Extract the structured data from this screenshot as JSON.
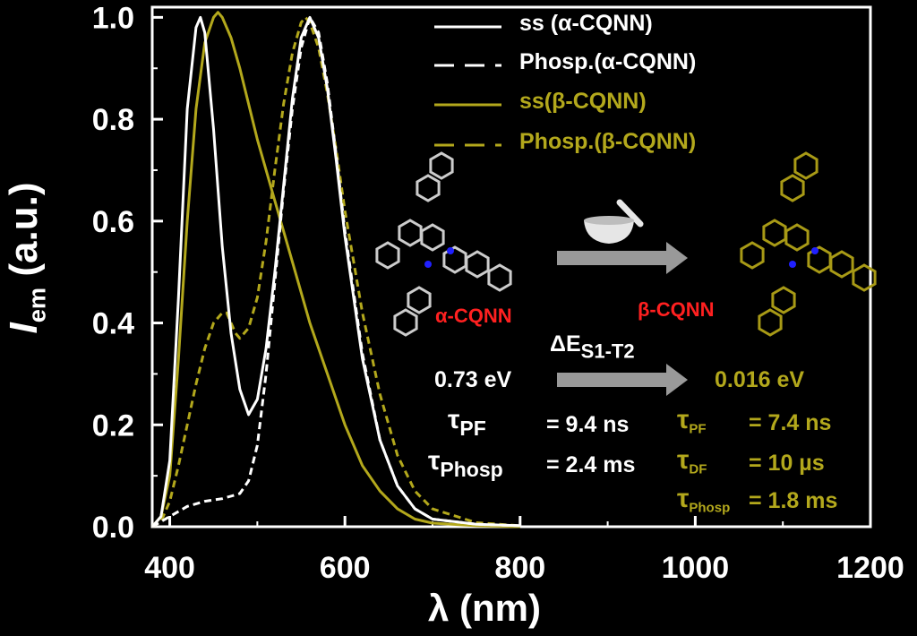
{
  "chart_data": {
    "type": "line",
    "xlabel": "λ (nm)",
    "ylabel": {
      "italic": "I",
      "sub": "em",
      "rest": " (a.u.)"
    },
    "xlim": [
      380,
      1200
    ],
    "ylim": [
      0,
      1.02
    ],
    "xticks": [
      400,
      600,
      800,
      1000,
      1200
    ],
    "yticks": [
      0.0,
      0.2,
      0.4,
      0.6,
      0.8,
      1.0
    ],
    "xtick_labels": [
      "400",
      "600",
      "800",
      "1000",
      "1200"
    ],
    "ytick_labels": [
      "0.0",
      "0.2",
      "0.4",
      "0.6",
      "0.8",
      "1.0"
    ],
    "legend_position": "top-right",
    "series": [
      {
        "name": "ss (α-CQNN)",
        "color": "#ffffff",
        "dash": "solid",
        "x": [
          380,
          390,
          400,
          410,
          420,
          430,
          435,
          440,
          450,
          460,
          470,
          480,
          490,
          500,
          510,
          520,
          530,
          540,
          550,
          560,
          570,
          580,
          590,
          600,
          620,
          640,
          660,
          680,
          700,
          750,
          800
        ],
        "y": [
          0.0,
          0.02,
          0.13,
          0.45,
          0.82,
          0.98,
          1.0,
          0.97,
          0.78,
          0.55,
          0.38,
          0.27,
          0.22,
          0.25,
          0.35,
          0.5,
          0.67,
          0.84,
          0.96,
          1.0,
          0.96,
          0.86,
          0.72,
          0.57,
          0.33,
          0.17,
          0.08,
          0.035,
          0.015,
          0.005,
          0.002
        ]
      },
      {
        "name": "Phosp.(α-CQNN)",
        "color": "#ffffff",
        "dash": "dashed",
        "x": [
          380,
          400,
          420,
          440,
          460,
          480,
          490,
          500,
          510,
          520,
          530,
          540,
          550,
          560,
          570,
          580,
          590,
          600,
          620,
          640,
          660,
          680,
          700,
          750,
          800
        ],
        "y": [
          0.0,
          0.02,
          0.04,
          0.05,
          0.055,
          0.065,
          0.09,
          0.16,
          0.3,
          0.48,
          0.66,
          0.82,
          0.94,
          1.0,
          0.97,
          0.87,
          0.73,
          0.58,
          0.34,
          0.17,
          0.08,
          0.035,
          0.015,
          0.005,
          0.002
        ]
      },
      {
        "name": "ss(β-CQNN)",
        "color": "#b3a81c",
        "dash": "solid",
        "x": [
          380,
          390,
          400,
          410,
          420,
          430,
          440,
          450,
          455,
          460,
          470,
          480,
          490,
          500,
          520,
          540,
          560,
          580,
          600,
          620,
          640,
          660,
          680,
          700,
          750,
          800
        ],
        "y": [
          0.0,
          0.02,
          0.1,
          0.33,
          0.6,
          0.82,
          0.95,
          1.0,
          1.01,
          1.0,
          0.96,
          0.9,
          0.83,
          0.76,
          0.64,
          0.52,
          0.4,
          0.3,
          0.2,
          0.12,
          0.07,
          0.035,
          0.015,
          0.007,
          0.002,
          0.0
        ]
      },
      {
        "name": "Phosp.(β-CQNN)",
        "color": "#b3a81c",
        "dash": "dashed",
        "x": [
          380,
          390,
          400,
          410,
          420,
          430,
          440,
          450,
          460,
          465,
          470,
          475,
          480,
          490,
          500,
          510,
          520,
          530,
          540,
          550,
          555,
          560,
          570,
          580,
          590,
          600,
          620,
          640,
          660,
          680,
          700,
          750,
          800
        ],
        "y": [
          0.0,
          0.01,
          0.05,
          0.12,
          0.2,
          0.28,
          0.35,
          0.4,
          0.42,
          0.42,
          0.4,
          0.38,
          0.37,
          0.39,
          0.45,
          0.56,
          0.7,
          0.83,
          0.93,
          0.99,
          1.0,
          0.99,
          0.94,
          0.85,
          0.74,
          0.62,
          0.42,
          0.26,
          0.14,
          0.07,
          0.035,
          0.008,
          0.002
        ]
      }
    ],
    "annotations": {
      "alpha_label": "α-CQNN",
      "beta_label": "β-CQNN",
      "delta_e": {
        "base": "ΔE",
        "sub": "S1-T2"
      },
      "alpha_gap": "0.73 eV",
      "beta_gap": "0.016 eV",
      "alpha_lifetimes": [
        {
          "tau": "τ",
          "sub": "PF",
          "value": "= 9.4 ns"
        },
        {
          "tau": "τ",
          "sub": "Phosp",
          "value": "= 2.4 ms"
        }
      ],
      "beta_lifetimes": [
        {
          "tau": "τ",
          "sub": "PF",
          "value": "= 7.4 ns"
        },
        {
          "tau": "τ",
          "sub": "DF",
          "value": "= 10 µs"
        },
        {
          "tau": "τ",
          "sub": "Phosp",
          "value": "= 1.8 ms"
        }
      ]
    }
  },
  "colors": {
    "white": "#ffffff",
    "olive": "#b3a81c",
    "red": "#ff2020",
    "arrow": "#999999",
    "mol_alpha": "#cccccc",
    "mol_beta": "#a89a16",
    "nitrogen": "#2020ff"
  }
}
